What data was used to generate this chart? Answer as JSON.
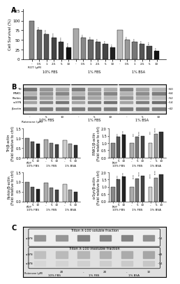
{
  "panel_A": {
    "title": "A",
    "groups": [
      "10% FBS",
      "1% FBS",
      "1% BSA"
    ],
    "x_labels": [
      "-",
      "0.5",
      "1",
      "2.5",
      "5",
      "10",
      "-",
      "0.5",
      "1",
      "2.5",
      "5",
      "10",
      "-",
      "0.5",
      "1",
      "2.5",
      "5",
      "10"
    ],
    "values": [
      100,
      75,
      65,
      55,
      45,
      30,
      80,
      55,
      50,
      45,
      40,
      30,
      75,
      50,
      45,
      40,
      35,
      22
    ],
    "bar_colors_groups": [
      "#888888",
      "#666666",
      "#555555",
      "#444444",
      "#333333",
      "#111111",
      "#aaaaaa",
      "#888888",
      "#666666",
      "#555555",
      "#444444",
      "#222222",
      "#bbbbbb",
      "#999999",
      "#777777",
      "#555555",
      "#444444",
      "#111111"
    ],
    "ylabel": "Cell Survival (%)",
    "xlabel": "ROT (μM)",
    "ylim": [
      0,
      130
    ],
    "yticks": [
      0,
      25,
      50,
      75,
      100,
      125
    ]
  },
  "panel_B_blot": {
    "proteins": [
      "TH",
      "PINK1",
      "Parkin",
      "α-SYN",
      "β-actin"
    ],
    "x_labels": [
      "-",
      "5",
      "10",
      "-",
      "5",
      "10",
      "-",
      "5",
      "10"
    ],
    "groups": [
      "10% FBS",
      "1% FBS",
      "1% BSA"
    ],
    "xlabel": "Rotenone (μM)"
  },
  "panel_B_TH": {
    "title": "TH",
    "groups": [
      "10% FBS",
      "1% FBS",
      "1% BSA"
    ],
    "bars_per_group": [
      "-",
      "5",
      "10"
    ],
    "values": [
      [
        1.0,
        0.82,
        0.72
      ],
      [
        0.92,
        0.75,
        0.68
      ],
      [
        0.88,
        0.7,
        0.65
      ]
    ],
    "ylim": [
      0,
      1.5
    ],
    "yticks": [
      0.0,
      0.5,
      1.0,
      1.5
    ],
    "ylabel": "TH/β-actin\n(Fold relative to ctrl)"
  },
  "panel_B_PINK1": {
    "title": "PINK1",
    "groups": [
      "10% FBS",
      "1% FBS",
      "1% BSA"
    ],
    "bars_per_group": [
      "-",
      "5",
      "10"
    ],
    "values": [
      [
        1.0,
        1.45,
        1.55
      ],
      [
        1.0,
        1.45,
        1.5
      ],
      [
        1.0,
        1.6,
        1.75
      ]
    ],
    "ylim": [
      0,
      2.0
    ],
    "yticks": [
      0.0,
      0.5,
      1.0,
      1.5,
      2.0
    ],
    "ylabel": "PINK1/β-actin\n(Fold relative to ctrl)"
  },
  "panel_B_Parkin": {
    "title": "Parkin",
    "groups": [
      "10% FBS",
      "1% FBS",
      "1% BSA"
    ],
    "bars_per_group": [
      "-",
      "5",
      "10"
    ],
    "values": [
      [
        1.0,
        0.75,
        0.65
      ],
      [
        0.95,
        0.72,
        0.6
      ],
      [
        0.9,
        0.62,
        0.5
      ]
    ],
    "ylim": [
      0,
      1.5
    ],
    "yticks": [
      0.0,
      0.5,
      1.0,
      1.5
    ],
    "ylabel": "Parkin/β-actin\n(Fold relative to ctrl)"
  },
  "panel_B_aSYN": {
    "title": "α-SYN",
    "groups": [
      "10% FBS",
      "1% FBS",
      "1% BSA"
    ],
    "bars_per_group": [
      "-",
      "5",
      "10"
    ],
    "values": [
      [
        1.0,
        1.5,
        1.7
      ],
      [
        1.0,
        1.55,
        1.75
      ],
      [
        1.0,
        1.6,
        1.85
      ]
    ],
    "ylim": [
      0,
      2.0
    ],
    "yticks": [
      0.0,
      0.5,
      1.0,
      1.5,
      2.0
    ],
    "ylabel": "α-Syn/β-actin\n(Fold relative to ctrl)"
  },
  "panel_C": {
    "labels": [
      "α-SYN",
      "α-SYN",
      "α-SYN"
    ],
    "sections": [
      "Triton X-100 soluble fraction",
      "Triton X-100 insoluble fraction"
    ],
    "x_labels": [
      "-",
      "20",
      "-",
      "20",
      "-",
      "10"
    ],
    "groups": [
      "10% FBS",
      "1% FBS",
      "1% BSA"
    ],
    "xlabel": "Rotenone (μM)"
  },
  "bar_colors": {
    "neg": "#888888",
    "low": "#555555",
    "high": "#222222",
    "neg2": "#aaaaaa",
    "low2": "#777777",
    "high2": "#444444",
    "neg3": "#cccccc",
    "low3": "#999999",
    "high3": "#333333"
  },
  "blot_color_top": "#d4d4d4",
  "blot_color_mid": "#b8b8b8",
  "blot_color_dark": "#888888",
  "background": "#ffffff"
}
